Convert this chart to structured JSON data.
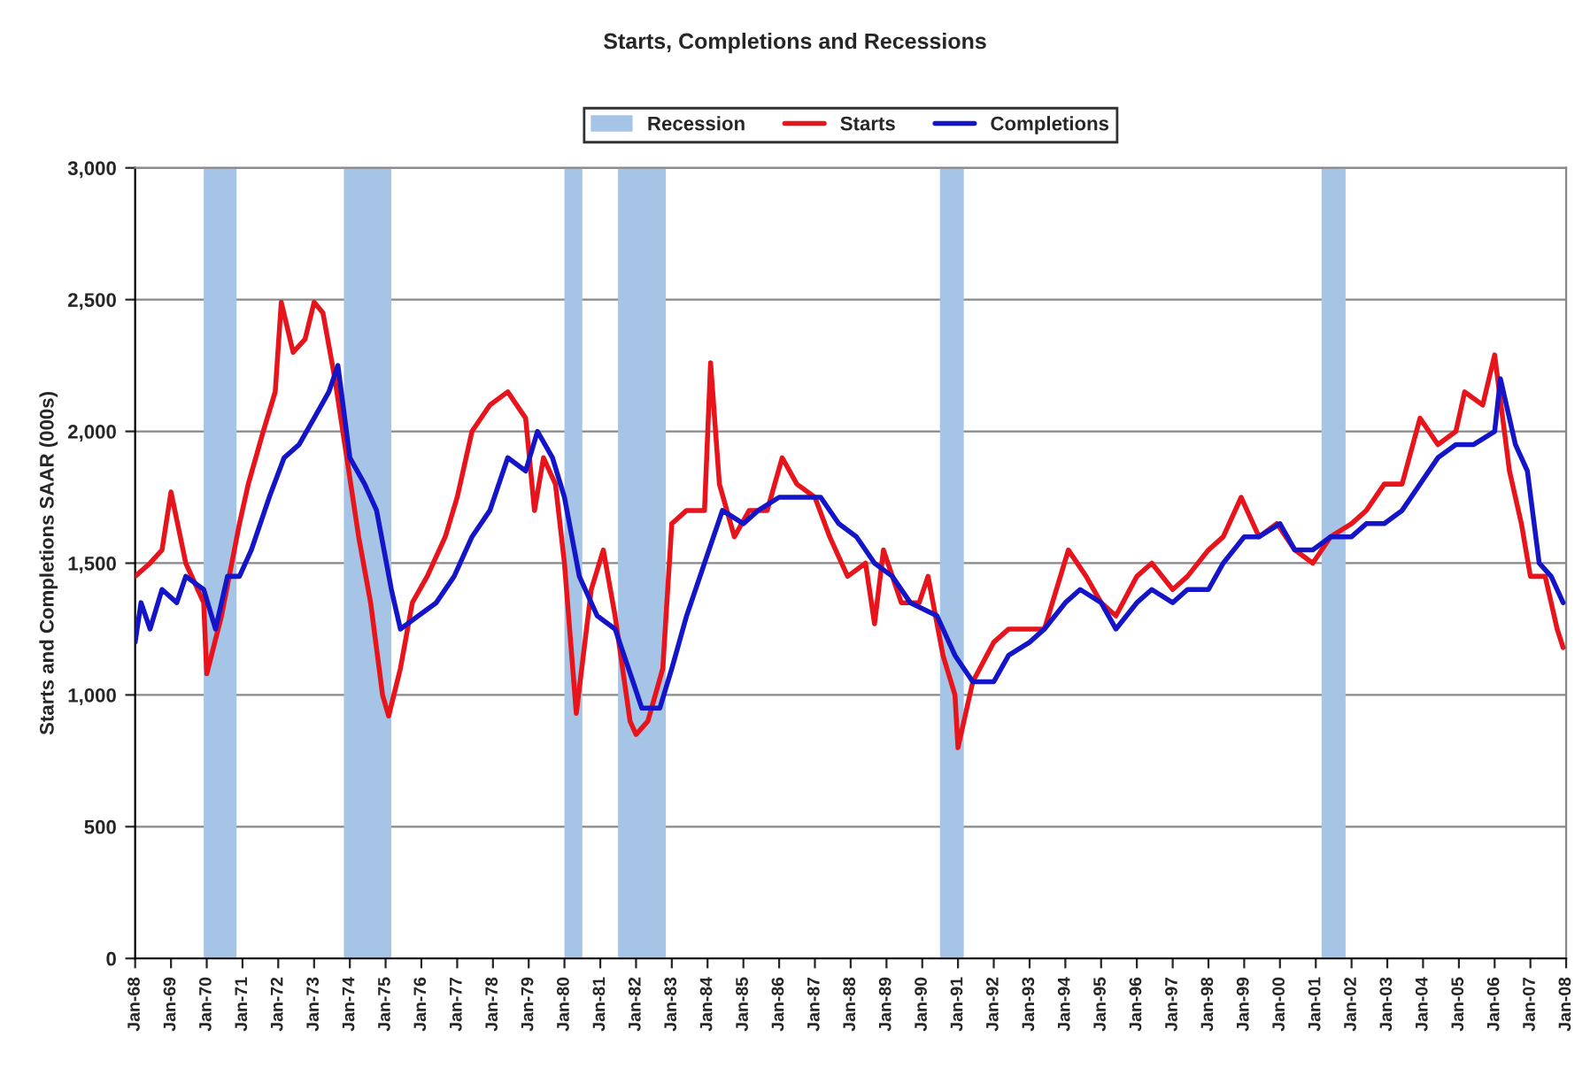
{
  "chart_data": {
    "type": "line",
    "title": "Starts, Completions and Recessions",
    "ylabel": "Starts and Completions SAAR (000s)",
    "series": [
      {
        "name": "Starts",
        "color": "#e8141c",
        "x": [
          "1968-01",
          "1968-06",
          "1968-10",
          "1969-01",
          "1969-06",
          "1969-12",
          "1970-01",
          "1970-06",
          "1970-12",
          "1971-03",
          "1971-08",
          "1971-12",
          "1972-02",
          "1972-06",
          "1972-10",
          "1973-01",
          "1973-04",
          "1973-08",
          "1973-12",
          "1974-04",
          "1974-08",
          "1974-12",
          "1975-02",
          "1975-06",
          "1975-10",
          "1976-03",
          "1976-09",
          "1977-01",
          "1977-06",
          "1977-12",
          "1978-06",
          "1978-12",
          "1979-03",
          "1979-06",
          "1979-10",
          "1980-01",
          "1980-05",
          "1980-10",
          "1981-02",
          "1981-06",
          "1981-11",
          "1982-01",
          "1982-05",
          "1982-10",
          "1983-01",
          "1983-06",
          "1983-12",
          "1984-02",
          "1984-05",
          "1984-10",
          "1985-03",
          "1985-09",
          "1986-02",
          "1986-07",
          "1987-01",
          "1987-06",
          "1987-12",
          "1988-06",
          "1988-09",
          "1988-12",
          "1989-06",
          "1989-12",
          "1990-03",
          "1990-08",
          "1990-12",
          "1991-01",
          "1991-06",
          "1992-01",
          "1992-06",
          "1993-01",
          "1993-06",
          "1994-02",
          "1994-08",
          "1995-01",
          "1995-06",
          "1996-01",
          "1996-06",
          "1997-01",
          "1997-06",
          "1998-01",
          "1998-06",
          "1998-12",
          "1999-06",
          "1999-12",
          "2000-06",
          "2000-12",
          "2001-06",
          "2002-01",
          "2002-06",
          "2002-12",
          "2003-06",
          "2003-12",
          "2004-06",
          "2004-12",
          "2005-03",
          "2005-09",
          "2006-01",
          "2006-06",
          "2006-10",
          "2007-01",
          "2007-06",
          "2007-10",
          "2007-12"
        ],
        "values": [
          1450,
          1500,
          1550,
          1770,
          1500,
          1350,
          1080,
          1300,
          1650,
          1800,
          2000,
          2150,
          2490,
          2300,
          2350,
          2490,
          2450,
          2200,
          1900,
          1600,
          1350,
          1000,
          920,
          1100,
          1350,
          1450,
          1600,
          1750,
          2000,
          2100,
          2150,
          2050,
          1700,
          1900,
          1800,
          1500,
          930,
          1400,
          1550,
          1300,
          900,
          850,
          900,
          1100,
          1650,
          1700,
          1700,
          2260,
          1800,
          1600,
          1700,
          1700,
          1900,
          1800,
          1750,
          1600,
          1450,
          1500,
          1270,
          1550,
          1350,
          1350,
          1450,
          1150,
          1000,
          800,
          1050,
          1200,
          1250,
          1250,
          1250,
          1550,
          1450,
          1350,
          1300,
          1450,
          1500,
          1400,
          1450,
          1550,
          1600,
          1750,
          1600,
          1650,
          1550,
          1500,
          1600,
          1650,
          1700,
          1800,
          1800,
          2050,
          1950,
          2000,
          2150,
          2100,
          2290,
          1850,
          1650,
          1450,
          1450,
          1250,
          1180
        ]
      },
      {
        "name": "Completions",
        "color": "#1414c8",
        "x": [
          "1968-01",
          "1968-03",
          "1968-06",
          "1968-10",
          "1969-03",
          "1969-06",
          "1969-12",
          "1970-04",
          "1970-08",
          "1970-12",
          "1971-04",
          "1971-10",
          "1972-03",
          "1972-08",
          "1973-01",
          "1973-06",
          "1973-09",
          "1974-01",
          "1974-06",
          "1974-10",
          "1975-03",
          "1975-06",
          "1975-12",
          "1976-06",
          "1976-12",
          "1977-06",
          "1977-12",
          "1978-06",
          "1978-12",
          "1979-04",
          "1979-09",
          "1980-01",
          "1980-06",
          "1980-12",
          "1981-06",
          "1981-12",
          "1982-03",
          "1982-09",
          "1983-01",
          "1983-06",
          "1983-12",
          "1984-06",
          "1985-01",
          "1985-06",
          "1986-01",
          "1986-06",
          "1987-03",
          "1987-09",
          "1988-03",
          "1988-09",
          "1989-03",
          "1989-09",
          "1990-06",
          "1990-12",
          "1991-06",
          "1992-01",
          "1992-06",
          "1993-01",
          "1993-06",
          "1994-01",
          "1994-06",
          "1995-01",
          "1995-06",
          "1996-01",
          "1996-06",
          "1997-01",
          "1997-06",
          "1998-01",
          "1998-06",
          "1999-01",
          "1999-06",
          "2000-01",
          "2000-06",
          "2000-12",
          "2001-06",
          "2002-01",
          "2002-06",
          "2002-12",
          "2003-06",
          "2003-12",
          "2004-06",
          "2004-12",
          "2005-06",
          "2006-01",
          "2006-03",
          "2006-08",
          "2006-12",
          "2007-04",
          "2007-08",
          "2007-12"
        ],
        "values": [
          1200,
          1350,
          1250,
          1400,
          1350,
          1450,
          1400,
          1250,
          1450,
          1450,
          1550,
          1750,
          1900,
          1950,
          2050,
          2150,
          2250,
          1900,
          1800,
          1700,
          1400,
          1250,
          1300,
          1350,
          1450,
          1600,
          1700,
          1900,
          1850,
          2000,
          1900,
          1750,
          1450,
          1300,
          1250,
          1050,
          950,
          950,
          1100,
          1300,
          1500,
          1700,
          1650,
          1700,
          1750,
          1750,
          1750,
          1650,
          1600,
          1500,
          1450,
          1350,
          1300,
          1150,
          1050,
          1050,
          1150,
          1200,
          1250,
          1350,
          1400,
          1350,
          1250,
          1350,
          1400,
          1350,
          1400,
          1400,
          1500,
          1600,
          1600,
          1650,
          1550,
          1550,
          1600,
          1600,
          1650,
          1650,
          1700,
          1800,
          1900,
          1950,
          1950,
          2000,
          2200,
          1950,
          1850,
          1500,
          1450,
          1350
        ]
      }
    ],
    "bands": [
      {
        "axis": "x",
        "from": "1969-12",
        "to": "1970-11",
        "label": "Recession",
        "color": "#a6c4e6"
      },
      {
        "axis": "x",
        "from": "1973-11",
        "to": "1975-03",
        "color": "#a6c4e6"
      },
      {
        "axis": "x",
        "from": "1980-01",
        "to": "1980-07",
        "color": "#a6c4e6"
      },
      {
        "axis": "x",
        "from": "1981-07",
        "to": "1982-11",
        "color": "#a6c4e6"
      },
      {
        "axis": "x",
        "from": "1990-07",
        "to": "1991-03",
        "color": "#a6c4e6"
      },
      {
        "axis": "x",
        "from": "2001-03",
        "to": "2001-11",
        "color": "#a6c4e6"
      }
    ],
    "xlim": [
      "1968-01",
      "2008-01"
    ],
    "xticks": [
      {
        "value": "1968-01",
        "label": "Jan-68"
      },
      {
        "value": "1969-01",
        "label": "Jan-69"
      },
      {
        "value": "1970-01",
        "label": "Jan-70"
      },
      {
        "value": "1971-01",
        "label": "Jan-71"
      },
      {
        "value": "1972-01",
        "label": "Jan-72"
      },
      {
        "value": "1973-01",
        "label": "Jan-73"
      },
      {
        "value": "1974-01",
        "label": "Jan-74"
      },
      {
        "value": "1975-01",
        "label": "Jan-75"
      },
      {
        "value": "1976-01",
        "label": "Jan-76"
      },
      {
        "value": "1977-01",
        "label": "Jan-77"
      },
      {
        "value": "1978-01",
        "label": "Jan-78"
      },
      {
        "value": "1979-01",
        "label": "Jan-79"
      },
      {
        "value": "1980-01",
        "label": "Jan-80"
      },
      {
        "value": "1981-01",
        "label": "Jan-81"
      },
      {
        "value": "1982-01",
        "label": "Jan-82"
      },
      {
        "value": "1983-01",
        "label": "Jan-83"
      },
      {
        "value": "1984-01",
        "label": "Jan-84"
      },
      {
        "value": "1985-01",
        "label": "Jan-85"
      },
      {
        "value": "1986-01",
        "label": "Jan-86"
      },
      {
        "value": "1987-01",
        "label": "Jan-87"
      },
      {
        "value": "1988-01",
        "label": "Jan-88"
      },
      {
        "value": "1989-01",
        "label": "Jan-89"
      },
      {
        "value": "1990-01",
        "label": "Jan-90"
      },
      {
        "value": "1991-01",
        "label": "Jan-91"
      },
      {
        "value": "1992-01",
        "label": "Jan-92"
      },
      {
        "value": "1993-01",
        "label": "Jan-93"
      },
      {
        "value": "1994-01",
        "label": "Jan-94"
      },
      {
        "value": "1995-01",
        "label": "Jan-95"
      },
      {
        "value": "1996-01",
        "label": "Jan-96"
      },
      {
        "value": "1997-01",
        "label": "Jan-97"
      },
      {
        "value": "1998-01",
        "label": "Jan-98"
      },
      {
        "value": "1999-01",
        "label": "Jan-99"
      },
      {
        "value": "2000-01",
        "label": "Jan-00"
      },
      {
        "value": "2001-01",
        "label": "Jan-01"
      },
      {
        "value": "2002-01",
        "label": "Jan-02"
      },
      {
        "value": "2003-01",
        "label": "Jan-03"
      },
      {
        "value": "2004-01",
        "label": "Jan-04"
      },
      {
        "value": "2005-01",
        "label": "Jan-05"
      },
      {
        "value": "2006-01",
        "label": "Jan-06"
      },
      {
        "value": "2007-01",
        "label": "Jan-07"
      },
      {
        "value": "2008-01",
        "label": "Jan-08"
      }
    ],
    "ylim": [
      0,
      3000
    ],
    "yticks": [
      {
        "value": 0,
        "label": "0"
      },
      {
        "value": 500,
        "label": "500"
      },
      {
        "value": 1000,
        "label": "1,000"
      },
      {
        "value": 1500,
        "label": "1,500"
      },
      {
        "value": 2000,
        "label": "2,000"
      },
      {
        "value": 2500,
        "label": "2,500"
      },
      {
        "value": 3000,
        "label": "3,000"
      }
    ],
    "grid": "y",
    "legend": "top",
    "line_style": "solid"
  }
}
